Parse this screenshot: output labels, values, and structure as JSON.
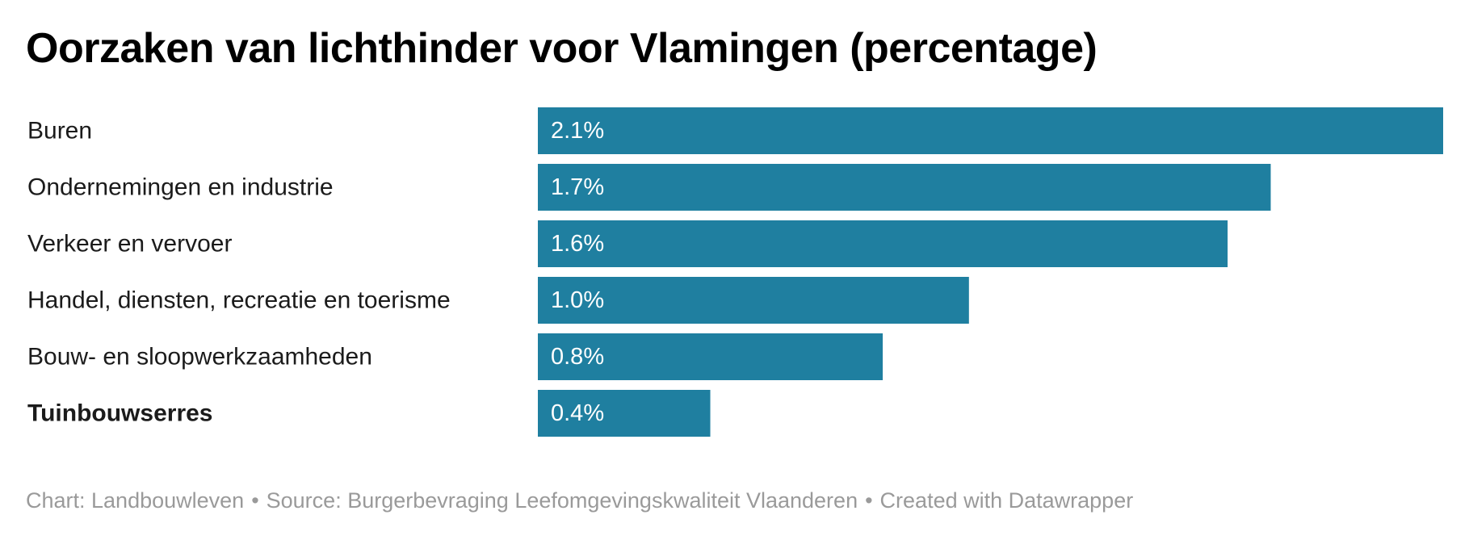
{
  "title": "Oorzaken van lichthinder voor Vlamingen (percentage)",
  "footer": {
    "chart_by": "Chart: Landbouwleven",
    "source": "Source: Burgerbevraging Leefomgevingskwaliteit Vlaanderen",
    "created_with": "Created with Datawrapper",
    "separator": "•"
  },
  "colors": {
    "bar": "#1f7fa0",
    "bar_value_text": "#ffffff",
    "footer_text": "#9a9a9a"
  },
  "chart_data": {
    "type": "bar",
    "orientation": "horizontal",
    "title": "Oorzaken van lichthinder voor Vlamingen (percentage)",
    "categories": [
      "Buren",
      "Ondernemingen en industrie",
      "Verkeer en vervoer",
      "Handel, diensten, recreatie en toerisme",
      "Bouw- en sloopwerkzaamheden",
      "Tuinbouwserres"
    ],
    "values": [
      2.1,
      1.7,
      1.6,
      1.0,
      0.8,
      0.4
    ],
    "value_labels": [
      "2.1%",
      "1.7%",
      "1.6%",
      "1.0%",
      "0.8%",
      "0.4%"
    ],
    "bold_categories": [
      "Tuinbouwserres"
    ],
    "unit": "%",
    "xlim": [
      0,
      2.1
    ],
    "grid": false,
    "legend": "none"
  }
}
